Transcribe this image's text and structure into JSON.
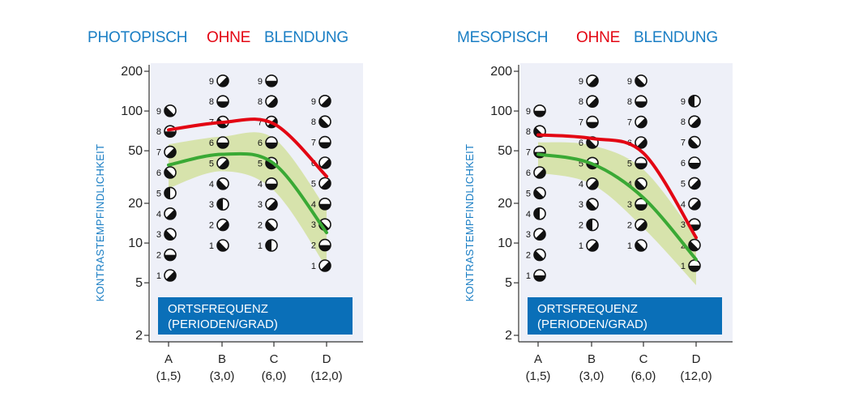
{
  "colors": {
    "title_blue": "#1a7ec4",
    "ohne_red": "#e30613",
    "plot_background": "#eef0f8",
    "band_fill": "#d5e2a8",
    "green_line": "#3aa935",
    "red_line": "#e30613",
    "box_fill": "#0a6fb8"
  },
  "chart_data": [
    {
      "type": "line",
      "title": [
        "PHOTOPISCH",
        "OHNE",
        "BLENDUNG"
      ],
      "ylabel": "KONTRASTEMPFINDLICHKEIT",
      "xlabel": [
        "ORTSFREQUENZ",
        "(PERIODEN/GRAD)"
      ],
      "y_scale": "log",
      "ylim": [
        2,
        200
      ],
      "yticks": [
        "200",
        "100",
        "50",
        "20",
        "10",
        "5",
        "2"
      ],
      "categories": [
        "A",
        "B",
        "C",
        "D"
      ],
      "category_sublabels": [
        "(1,5)",
        "(3,0)",
        "(6,0)",
        "(12,0)"
      ],
      "grid": false,
      "test_chart_levels": {
        "A": [
          "1",
          "2",
          "3",
          "4",
          "5",
          "6",
          "7",
          "8",
          "9"
        ],
        "B": [
          "1",
          "2",
          "3",
          "4",
          "5",
          "6",
          "7",
          "8",
          "9"
        ],
        "C": [
          "1",
          "2",
          "3",
          "4",
          "5",
          "6",
          "7",
          "8",
          "9"
        ],
        "D": [
          "1",
          "2",
          "3",
          "4",
          "5",
          "6",
          "7",
          "8",
          "9"
        ]
      },
      "series": [
        {
          "values": [
            72,
            82,
            80,
            32
          ]
        },
        {
          "values": [
            39,
            47,
            40,
            12
          ]
        }
      ],
      "normal_range": {
        "lower": [
          26,
          35,
          25,
          6.5
        ],
        "upper": [
          56,
          64,
          62,
          18
        ]
      }
    },
    {
      "type": "line",
      "title": [
        "MESOPISCH",
        "OHNE",
        "BLENDUNG"
      ],
      "ylabel": "KONTRASTEMPFINDLICHKEIT",
      "xlabel": [
        "ORTSFREQUENZ",
        "(PERIODEN/GRAD)"
      ],
      "y_scale": "log",
      "ylim": [
        2,
        200
      ],
      "yticks": [
        "200",
        "100",
        "50",
        "20",
        "10",
        "5",
        "2"
      ],
      "categories": [
        "A",
        "B",
        "C",
        "D"
      ],
      "category_sublabels": [
        "(1,5)",
        "(3,0)",
        "(6,0)",
        "(12,0)"
      ],
      "grid": false,
      "test_chart_levels": {
        "A": [
          "1",
          "2",
          "3",
          "4",
          "5",
          "6",
          "7",
          "8",
          "9"
        ],
        "B": [
          "1",
          "2",
          "3",
          "4",
          "5",
          "6",
          "7",
          "8",
          "9"
        ],
        "C": [
          "1",
          "2",
          "3",
          "4",
          "5",
          "6",
          "7",
          "8",
          "9"
        ],
        "D": [
          "1",
          "2",
          "3",
          "4",
          "5",
          "6",
          "7",
          "8",
          "9"
        ]
      },
      "series": [
        {
          "values": [
            66,
            62,
            48,
            11
          ]
        },
        {
          "values": [
            47,
            40,
            22,
            7.5
          ]
        }
      ],
      "normal_range": {
        "lower": [
          34,
          28,
          13,
          4.8
        ],
        "upper": [
          58,
          55,
          36,
          11
        ]
      }
    }
  ]
}
